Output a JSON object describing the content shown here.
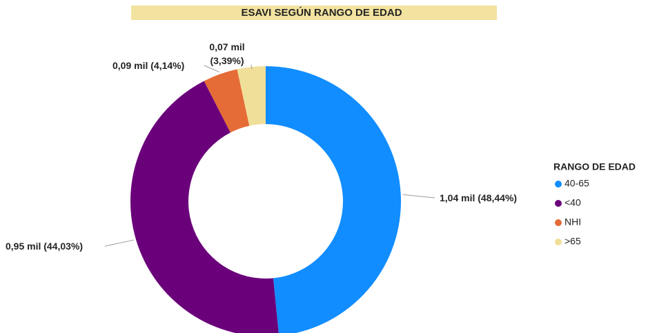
{
  "chart_data": {
    "type": "donut",
    "title": "ESAVI SEGÚN RANGO DE EDAD",
    "categories": [
      "40-65",
      "<40",
      "NHI",
      ">65"
    ],
    "values": [
      48.44,
      44.03,
      4.14,
      3.39
    ],
    "value_labels": [
      "1,04 mil (48,44%)",
      "0,95 mil (44,03%)",
      "0,09 mil (4,14%)",
      "0,07 mil (3,39%)"
    ],
    "colors": [
      "#118dff",
      "#6b007b",
      "#e66c37",
      "#f0df99"
    ],
    "legend_title": "RANGO DE EDAD",
    "legend": "right"
  }
}
